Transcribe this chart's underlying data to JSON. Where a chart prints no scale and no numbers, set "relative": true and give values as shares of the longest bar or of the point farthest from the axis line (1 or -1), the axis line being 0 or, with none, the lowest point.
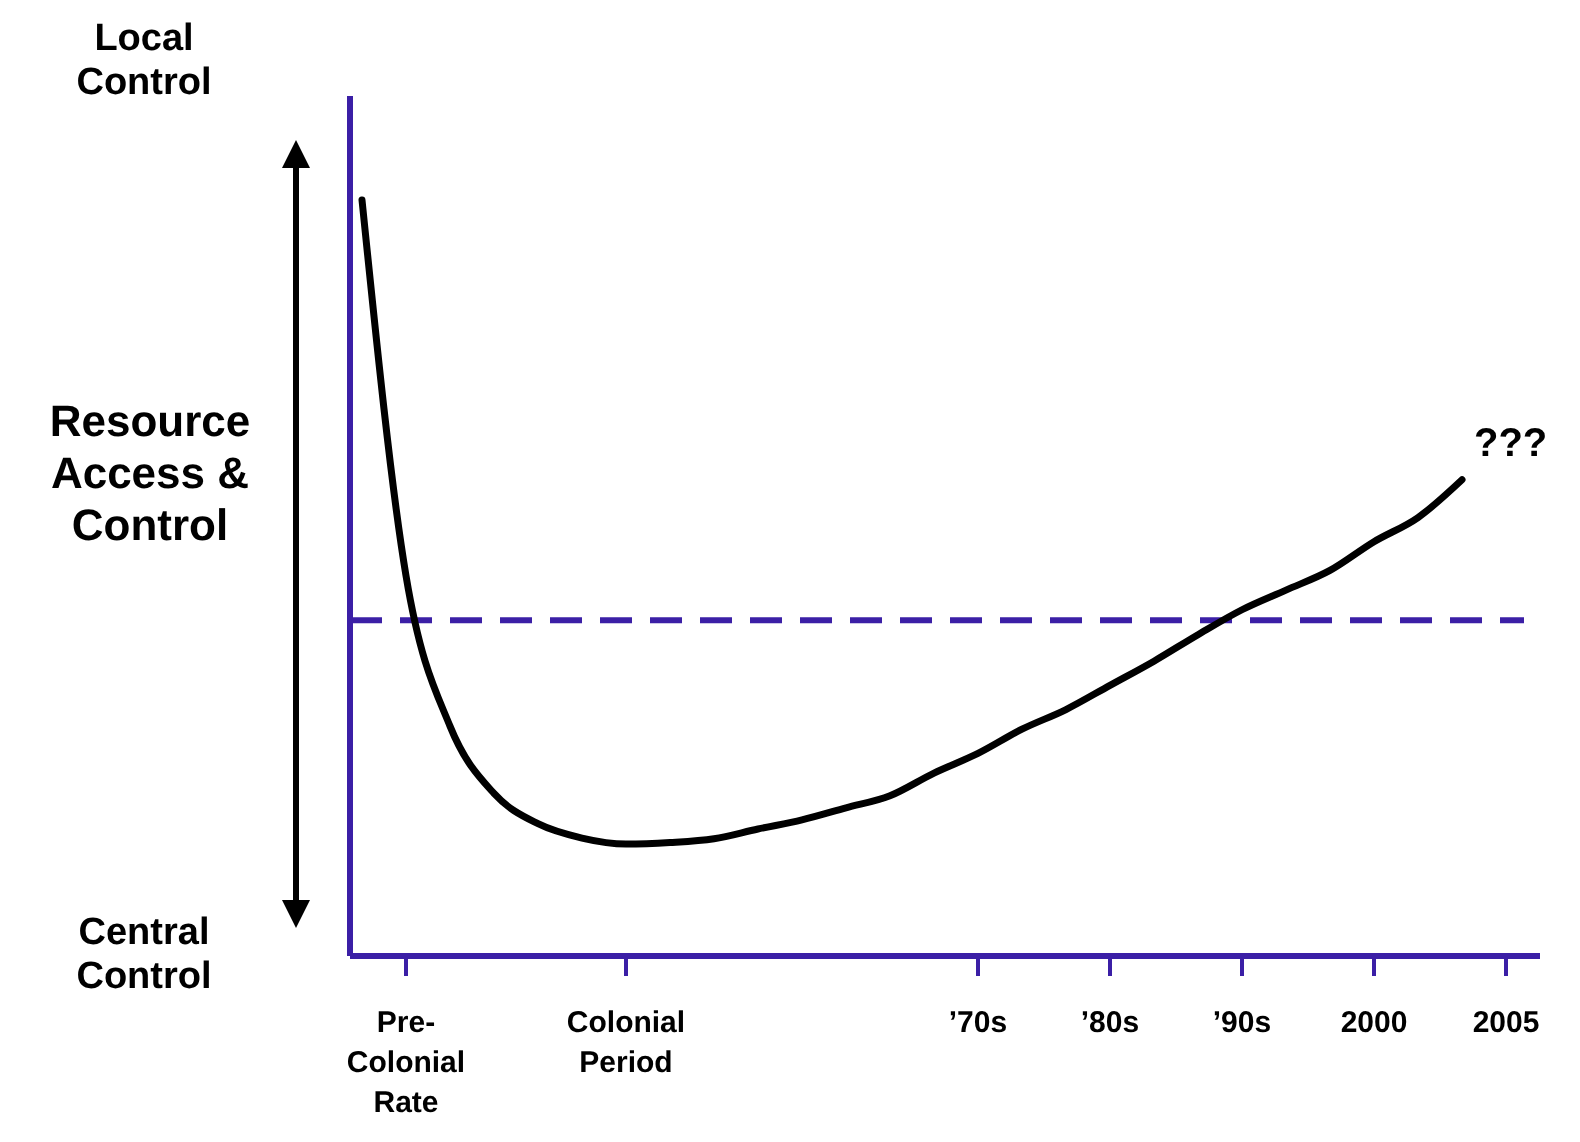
{
  "chart_data": {
    "type": "line",
    "relative": true,
    "ylabel": "Resource Access & Control",
    "annotations": [
      "Local Control",
      "Central Control",
      "???"
    ],
    "categories": [
      null,
      "Pre-Colonial Rate",
      null,
      null,
      null,
      null,
      "Colonial Period",
      null,
      null,
      null,
      null,
      null,
      null,
      null,
      "’70s",
      null,
      null,
      "’80s",
      null,
      null,
      "’90s",
      null,
      null,
      "2000",
      null,
      null,
      "2005"
    ],
    "series": [
      {
        "color": "#000000",
        "values": [
          1.0,
          0.503,
          0.304,
          0.215,
          0.175,
          0.156,
          0.148,
          0.15,
          0.155,
          0.168,
          0.18,
          0.196,
          0.212,
          0.242,
          0.268,
          0.3,
          0.326,
          0.358,
          0.39,
          0.425,
          0.458,
          0.484,
          0.51,
          0.548,
          0.58,
          0.63,
          null
        ]
      }
    ],
    "ref_lines": [
      {
        "axis": "y",
        "value": 0.444,
        "color": "#3b1fa6",
        "line_style": "dashed"
      }
    ],
    "grid": false,
    "marker": "none",
    "line_style": "solid"
  }
}
